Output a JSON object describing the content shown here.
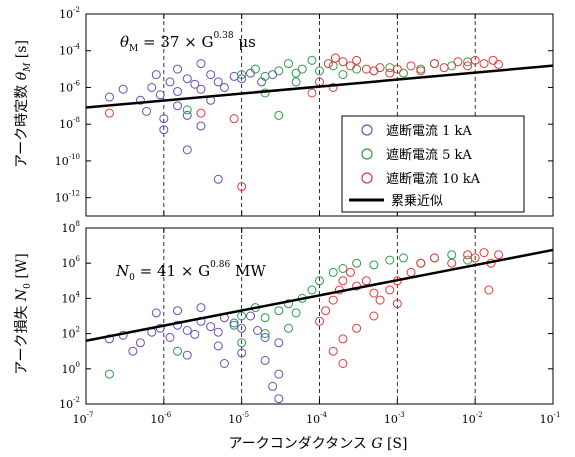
{
  "chart_data": [
    {
      "type": "scatter",
      "panel": "top",
      "ylabel": "アーク時定数 θ_M [s]",
      "ylabel_parts": [
        "アーク時定数 ",
        "θ",
        "M",
        " [s]"
      ],
      "annotation": {
        "lhs": "θ",
        "sub": "M",
        "coef": " = 37 × G",
        "exp": "0.38",
        "unit": " μs"
      },
      "x_scale": "log",
      "y_scale": "log",
      "xlim": [
        1e-07,
        0.1
      ],
      "ylim": [
        1e-13,
        0.01
      ],
      "y_ticks": [
        {
          "base": "10",
          "exp": "-12",
          "v": 1e-12
        },
        {
          "base": "10",
          "exp": "-10",
          "v": 1e-10
        },
        {
          "base": "10",
          "exp": "-8",
          "v": 1e-08
        },
        {
          "base": "10",
          "exp": "-6",
          "v": 1e-06
        },
        {
          "base": "10",
          "exp": "-4",
          "v": 0.0001
        },
        {
          "base": "10",
          "exp": "-2",
          "v": 0.01
        }
      ],
      "fit": {
        "name": "累乗近似",
        "coef": 3.7e-05,
        "exponent": 0.38,
        "x_range": [
          1e-07,
          0.1
        ]
      },
      "series": [
        {
          "name": "遮断電流 1 kA",
          "color": "#6a4fb5",
          "points": [
            [
              2e-07,
              3e-07
            ],
            [
              3e-07,
              8e-07
            ],
            [
              5e-07,
              2e-07
            ],
            [
              7e-07,
              1e-06
            ],
            [
              9e-07,
              4e-07
            ],
            [
              1.2e-06,
              2e-06
            ],
            [
              1.5e-06,
              6e-07
            ],
            [
              2e-06,
              3e-06
            ],
            [
              2.5e-06,
              1.5e-06
            ],
            [
              3e-06,
              8e-07
            ],
            [
              4e-06,
              5e-06
            ],
            [
              5e-06,
              2e-06
            ],
            [
              6e-06,
              1e-06
            ],
            [
              8e-06,
              4e-06
            ],
            [
              1e-05,
              3e-06
            ],
            [
              1.3e-05,
              6e-06
            ],
            [
              1.8e-05,
              2e-06
            ],
            [
              2.5e-05,
              5e-06
            ],
            [
              6e-07,
              5e-08
            ],
            [
              1e-06,
              2e-08
            ],
            [
              1.5e-06,
              1e-07
            ],
            [
              2e-06,
              3e-08
            ],
            [
              3e-06,
              8e-09
            ],
            [
              4e-06,
              2e-07
            ],
            [
              1e-06,
              5e-09
            ],
            [
              2e-06,
              4e-10
            ],
            [
              5e-06,
              1e-11
            ],
            [
              8e-07,
              5e-06
            ],
            [
              1.5e-06,
              1e-05
            ],
            [
              3e-06,
              2e-05
            ]
          ]
        },
        {
          "name": "遮断電流 5 kA",
          "color": "#2a9d4a",
          "points": [
            [
              1e-05,
              5e-06
            ],
            [
              1.5e-05,
              1e-05
            ],
            [
              2e-05,
              4e-06
            ],
            [
              3e-05,
              8e-06
            ],
            [
              4e-05,
              2e-05
            ],
            [
              5e-05,
              6e-06
            ],
            [
              6e-05,
              1e-05
            ],
            [
              8e-05,
              3e-05
            ],
            [
              0.0001,
              8e-06
            ],
            [
              0.00015,
              1.5e-05
            ],
            [
              0.0002,
              5e-06
            ],
            [
              0.0003,
              1e-05
            ],
            [
              0.0005,
              8e-06
            ],
            [
              0.0008,
              1.2e-05
            ],
            [
              0.0012,
              6e-06
            ],
            [
              0.002,
              1e-05
            ],
            [
              0.003,
              2e-05
            ],
            [
              0.005,
              1.5e-05
            ],
            [
              0.008,
              2.5e-05
            ],
            [
              2e-05,
              5e-07
            ],
            [
              3e-05,
              3e-08
            ],
            [
              5e-05,
              2e-06
            ],
            [
              2e-06,
              6e-08
            ]
          ]
        },
        {
          "name": "遮断電流 10 kA",
          "color": "#e03a3a",
          "points": [
            [
              0.00013,
              2e-05
            ],
            [
              0.00016,
              4e-05
            ],
            [
              0.0002,
              2.5e-05
            ],
            [
              0.00025,
              1.5e-05
            ],
            [
              0.0003,
              3e-05
            ],
            [
              0.0004,
              1e-05
            ],
            [
              0.0005,
              8e-06
            ],
            [
              0.0006,
              1.2e-05
            ],
            [
              0.0008,
              6e-06
            ],
            [
              0.001,
              1e-05
            ],
            [
              0.0015,
              1.5e-05
            ],
            [
              0.002,
              8e-06
            ],
            [
              0.003,
              2e-05
            ],
            [
              0.004,
              1.2e-05
            ],
            [
              0.006,
              2.5e-05
            ],
            [
              0.008,
              1.5e-05
            ],
            [
              0.01,
              3e-05
            ],
            [
              0.013,
              2e-05
            ],
            [
              0.017,
              3e-05
            ],
            [
              0.02,
              1.8e-05
            ],
            [
              0.0001,
              2e-06
            ],
            [
              8e-05,
              5e-07
            ],
            [
              0.00015,
              1e-06
            ],
            [
              2e-07,
              4e-08
            ],
            [
              3e-06,
              4e-08
            ],
            [
              8e-06,
              2e-08
            ],
            [
              1e-05,
              4e-12
            ]
          ]
        }
      ]
    },
    {
      "type": "scatter",
      "panel": "bottom",
      "ylabel": "アーク損失 N_0 [W]",
      "ylabel_parts": [
        "アーク損失 ",
        "N",
        "0",
        " [W]"
      ],
      "annotation": {
        "lhs": "N",
        "sub": "0",
        "coef": " = 41 × G",
        "exp": "0.86",
        "unit": " MW"
      },
      "xlabel": "アークコンダクタンス G [S]",
      "xlabel_parts": [
        "アークコンダクタンス ",
        "G",
        " [S]"
      ],
      "x_scale": "log",
      "y_scale": "log",
      "xlim": [
        1e-07,
        0.1
      ],
      "ylim": [
        0.01,
        100000000.0
      ],
      "x_ticks": [
        {
          "base": "10",
          "exp": "-7",
          "v": 1e-07
        },
        {
          "base": "10",
          "exp": "-6",
          "v": 1e-06
        },
        {
          "base": "10",
          "exp": "-5",
          "v": 1e-05
        },
        {
          "base": "10",
          "exp": "-4",
          "v": 0.0001
        },
        {
          "base": "10",
          "exp": "-3",
          "v": 0.001
        },
        {
          "base": "10",
          "exp": "-2",
          "v": 0.01
        },
        {
          "base": "10",
          "exp": "-1",
          "v": 0.1
        }
      ],
      "y_ticks": [
        {
          "base": "10",
          "exp": "-2",
          "v": 0.01
        },
        {
          "base": "10",
          "exp": "0",
          "v": 1
        },
        {
          "base": "10",
          "exp": "2",
          "v": 100
        },
        {
          "base": "10",
          "exp": "4",
          "v": 10000.0
        },
        {
          "base": "10",
          "exp": "6",
          "v": 1000000.0
        },
        {
          "base": "10",
          "exp": "8",
          "v": 100000000.0
        }
      ],
      "fit": {
        "name": "累乗近似",
        "coef": 41000000.0,
        "exponent": 0.86,
        "x_range": [
          1e-07,
          0.1
        ]
      },
      "series": [
        {
          "name": "遮断電流 1 kA",
          "color": "#6a4fb5",
          "points": [
            [
              2e-07,
              50
            ],
            [
              3e-07,
              80
            ],
            [
              5e-07,
              30
            ],
            [
              7e-07,
              120
            ],
            [
              9e-07,
              200
            ],
            [
              1.2e-06,
              60
            ],
            [
              1.5e-06,
              300
            ],
            [
              2e-06,
              150
            ],
            [
              2.5e-06,
              90
            ],
            [
              3e-06,
              500
            ],
            [
              4e-06,
              250
            ],
            [
              5e-06,
              120
            ],
            [
              6e-06,
              800
            ],
            [
              8e-06,
              400
            ],
            [
              1e-05,
              200
            ],
            [
              1.3e-05,
              1000
            ],
            [
              1.6e-05,
              150
            ],
            [
              2e-05,
              60
            ],
            [
              3e-05,
              30
            ],
            [
              5e-06,
              20
            ],
            [
              1e-05,
              8
            ],
            [
              2e-05,
              3
            ],
            [
              3e-05,
              0.5
            ],
            [
              1.5e-06,
              2000
            ],
            [
              3e-06,
              3000
            ],
            [
              8e-07,
              1500
            ],
            [
              4e-07,
              10
            ],
            [
              2e-06,
              6
            ],
            [
              6e-06,
              2
            ],
            [
              2.5e-05,
              0.1
            ],
            [
              3e-05,
              0.02
            ]
          ]
        },
        {
          "name": "遮断電流 5 kA",
          "color": "#2a9d4a",
          "points": [
            [
              8e-06,
              300
            ],
            [
              1e-05,
              1000
            ],
            [
              1.5e-05,
              3000
            ],
            [
              2e-05,
              800
            ],
            [
              3e-05,
              2000
            ],
            [
              4e-05,
              5000
            ],
            [
              5e-05,
              1500
            ],
            [
              6e-05,
              10000.0
            ],
            [
              8e-05,
              30000.0
            ],
            [
              0.0001,
              100000.0
            ],
            [
              0.00015,
              300000.0
            ],
            [
              0.0002,
              500000.0
            ],
            [
              0.0003,
              1000000.0
            ],
            [
              0.0005,
              800000.0
            ],
            [
              0.0008,
              1500000.0
            ],
            [
              0.0012,
              2000000.0
            ],
            [
              0.002,
              1000000.0
            ],
            [
              0.003,
              2000000.0
            ],
            [
              0.005,
              3000000.0
            ],
            [
              0.008,
              1500000.0
            ],
            [
              1e-05,
              30
            ],
            [
              2e-05,
              100
            ],
            [
              4e-05,
              200
            ],
            [
              1.5e-06,
              10
            ],
            [
              2e-07,
              0.5
            ]
          ]
        },
        {
          "name": "遮断電流 10 kA",
          "color": "#e03a3a",
          "points": [
            [
              0.0001,
              500
            ],
            [
              0.00012,
              2000
            ],
            [
              0.00015,
              8000
            ],
            [
              0.00018,
              30000.0
            ],
            [
              0.0002,
              100000.0
            ],
            [
              0.00025,
              300000.0
            ],
            [
              0.0003,
              50000.0
            ],
            [
              0.0004,
              100000.0
            ],
            [
              0.0005,
              20000.0
            ],
            [
              0.0006,
              8000.0
            ],
            [
              0.0008,
              30000.0
            ],
            [
              0.001,
              100000.0
            ],
            [
              0.0015,
              300000.0
            ],
            [
              0.002,
              1000000.0
            ],
            [
              0.003,
              2000000.0
            ],
            [
              0.005,
              1000000.0
            ],
            [
              0.008,
              3000000.0
            ],
            [
              0.01,
              2000000.0
            ],
            [
              0.013,
              4000000.0
            ],
            [
              0.016,
              1000000.0
            ],
            [
              0.02,
              3000000.0
            ],
            [
              0.015,
              30000.0
            ],
            [
              0.001,
              5000.0
            ],
            [
              0.0005,
              1000
            ],
            [
              0.0003,
              200
            ],
            [
              0.0002,
              50
            ],
            [
              0.00015,
              10
            ],
            [
              0.0002,
              2
            ]
          ]
        }
      ]
    }
  ],
  "legend": {
    "placement": "right-middle",
    "entries": [
      {
        "label": "遮断電流 1 kA",
        "color": "#6a4fb5",
        "marker": "circle"
      },
      {
        "label": "遮断電流 5 kA",
        "color": "#2a9d4a",
        "marker": "circle"
      },
      {
        "label": "遮断電流 10 kA",
        "color": "#e03a3a",
        "marker": "circle"
      },
      {
        "label": "累乗近似",
        "color": "#000000",
        "marker": "line"
      }
    ]
  }
}
